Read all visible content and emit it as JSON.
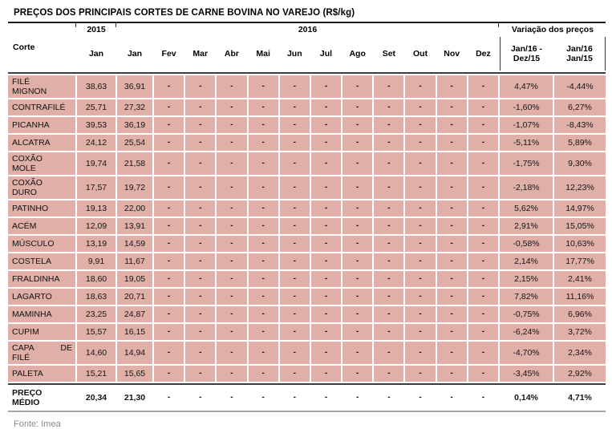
{
  "title": "PREÇOS DOS PRINCIPAIS CORTES DE CARNE BOVINA NO VAREJO (R$/kg)",
  "source": "Fonte: Imea",
  "dash": "-",
  "colors": {
    "cell_pink": "#e0b0a8",
    "grid_white": "#ffffff",
    "title_rule": "#1b1b1b",
    "summary_rule_top": "#3d3d3d",
    "summary_rule_bottom": "#a5a5a5",
    "source_text": "#8a8a8a"
  },
  "header": {
    "corte": "Corte",
    "groups": {
      "y2015": "2015",
      "y2016": "2016",
      "variation": "Variação dos preços"
    },
    "months": [
      "Jan",
      "Jan",
      "Fev",
      "Mar",
      "Abr",
      "Mai",
      "Jun",
      "Jul",
      "Ago",
      "Set",
      "Out",
      "Nov",
      "Dez"
    ],
    "variation_columns": [
      {
        "lines": [
          "Jan/16 -",
          "Dez/15"
        ]
      },
      {
        "lines": [
          "Jan/16",
          "Jan/15"
        ]
      }
    ]
  },
  "empty_month_count": 11,
  "rows": [
    {
      "label_lines": [
        "FILÉ",
        "MIGNON"
      ],
      "jan15": "38,63",
      "jan16": "36,91",
      "var_jan16_dez15": "4,47%",
      "var_jan16_jan15": "-4,44%"
    },
    {
      "label_lines": [
        "CONTRAFILÉ"
      ],
      "jan15": "25,71",
      "jan16": "27,32",
      "var_jan16_dez15": "-1,60%",
      "var_jan16_jan15": "6,27%"
    },
    {
      "label_lines": [
        "PICANHA"
      ],
      "jan15": "39,53",
      "jan16": "36,19",
      "var_jan16_dez15": "-1,07%",
      "var_jan16_jan15": "-8,43%"
    },
    {
      "label_lines": [
        "ALCATRA"
      ],
      "jan15": "24,12",
      "jan16": "25,54",
      "var_jan16_dez15": "-5,11%",
      "var_jan16_jan15": "5,89%"
    },
    {
      "label_lines": [
        "COXÃO",
        "MOLE"
      ],
      "jan15": "19,74",
      "jan16": "21,58",
      "var_jan16_dez15": "-1,75%",
      "var_jan16_jan15": "9,30%"
    },
    {
      "label_lines": [
        "COXÃO",
        "DURO"
      ],
      "jan15": "17,57",
      "jan16": "19,72",
      "var_jan16_dez15": "-2,18%",
      "var_jan16_jan15": "12,23%"
    },
    {
      "label_lines": [
        "PATINHO"
      ],
      "jan15": "19,13",
      "jan16": "22,00",
      "var_jan16_dez15": "5,62%",
      "var_jan16_jan15": "14,97%"
    },
    {
      "label_lines": [
        "ACÉM"
      ],
      "jan15": "12,09",
      "jan16": "13,91",
      "var_jan16_dez15": "2,91%",
      "var_jan16_jan15": "15,05%"
    },
    {
      "label_lines": [
        "MÚSCULO"
      ],
      "jan15": "13,19",
      "jan16": "14,59",
      "var_jan16_dez15": "-0,58%",
      "var_jan16_jan15": "10,63%"
    },
    {
      "label_lines": [
        "COSTELA"
      ],
      "jan15": "9,91",
      "jan16": "11,67",
      "var_jan16_dez15": "2,14%",
      "var_jan16_jan15": "17,77%"
    },
    {
      "label_lines": [
        "FRALDINHA"
      ],
      "jan15": "18,60",
      "jan16": "19,05",
      "var_jan16_dez15": "2,15%",
      "var_jan16_jan15": "2,41%"
    },
    {
      "label_lines": [
        "LAGARTO"
      ],
      "jan15": "18,63",
      "jan16": "20,71",
      "var_jan16_dez15": "7,82%",
      "var_jan16_jan15": "11,16%"
    },
    {
      "label_lines": [
        "MAMINHA"
      ],
      "jan15": "23,25",
      "jan16": "24,87",
      "var_jan16_dez15": "-0,75%",
      "var_jan16_jan15": "6,96%"
    },
    {
      "label_lines": [
        "CUPIM"
      ],
      "jan15": "15,57",
      "jan16": "16,15",
      "var_jan16_dez15": "-6,24%",
      "var_jan16_jan15": "3,72%"
    },
    {
      "label_lines": [
        "CAPA DE",
        "FILÉ"
      ],
      "jan15": "14,60",
      "jan16": "14,94",
      "var_jan16_dez15": "-4,70%",
      "var_jan16_jan15": "2,34%"
    },
    {
      "label_lines": [
        "PALETA"
      ],
      "jan15": "15,21",
      "jan16": "15,65",
      "var_jan16_dez15": "-3,45%",
      "var_jan16_jan15": "2,92%"
    }
  ],
  "summary_row": {
    "label_lines": [
      "PREÇO",
      "MÉDIO"
    ],
    "jan15": "20,34",
    "jan16": "21,30",
    "var_jan16_dez15": "0,14%",
    "var_jan16_jan15": "4,71%"
  }
}
